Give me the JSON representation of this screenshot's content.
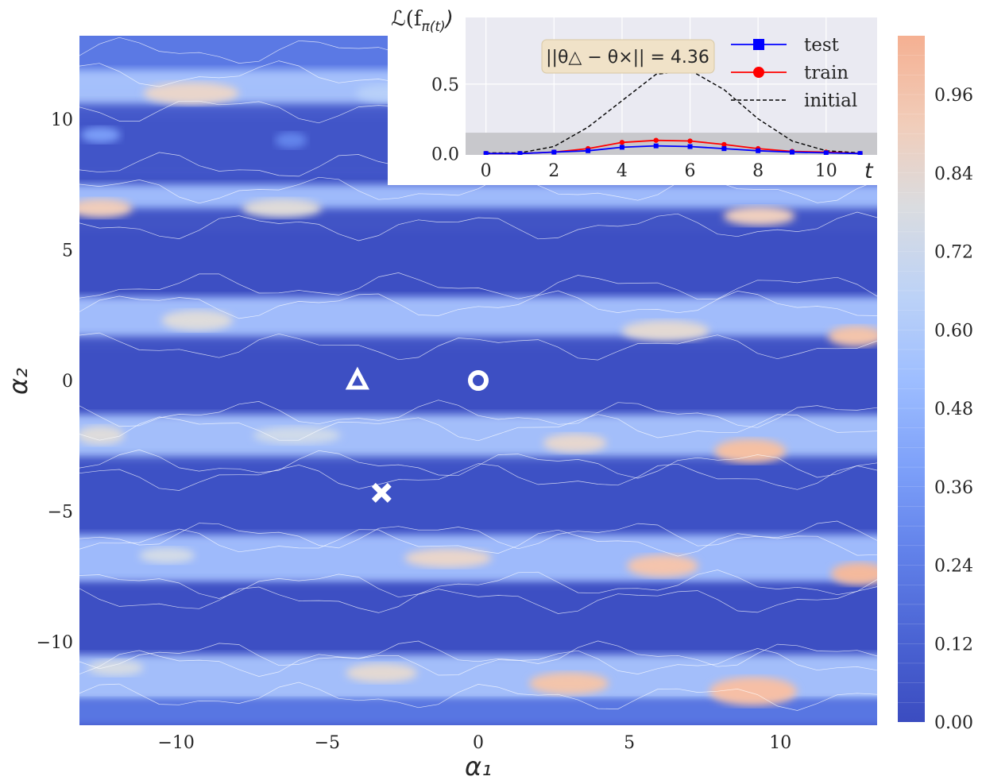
{
  "chart_data": [
    {
      "type": "heatmap",
      "description_of_surface": "contour map of loss over a 2D plane",
      "xlabel": "α₁",
      "ylabel": "α₂",
      "xlim": [
        -13.2,
        13.2
      ],
      "ylim": [
        -13.2,
        13.2
      ],
      "x_ticks": [
        -10,
        -5,
        0,
        5,
        10
      ],
      "x_tick_labels": [
        "−10",
        "−5",
        "0",
        "5",
        "10"
      ],
      "y_ticks": [
        -10,
        -5,
        0,
        5,
        10
      ],
      "y_tick_labels": [
        "−10",
        "−5",
        "0",
        "5",
        "10"
      ],
      "colorbar": {
        "min": 0.0,
        "max": 1.05,
        "ticks": [
          0.0,
          0.12,
          0.24,
          0.36,
          0.48,
          0.6,
          0.72,
          0.84,
          0.96
        ],
        "tick_labels": [
          "0.00",
          "0.12",
          "0.24",
          "0.36",
          "0.48",
          "0.60",
          "0.72",
          "0.84",
          "0.96"
        ],
        "colormap": "coolwarm",
        "low_color": "#3b4cc0",
        "high_color": "#f5b092"
      },
      "markers": [
        {
          "shape": "circle",
          "x": 0.0,
          "y": 0.0
        },
        {
          "shape": "triangle",
          "x": -4.0,
          "y": 0.0
        },
        {
          "shape": "cross",
          "x": -3.2,
          "y": -4.3
        }
      ]
    },
    {
      "type": "line",
      "ylabel": "ℒ(f",
      "ylabel_sub": "π(t)",
      "xlabel": "t",
      "x": [
        0,
        1,
        2,
        3,
        4,
        5,
        6,
        7,
        8,
        9,
        10,
        11
      ],
      "x_ticks": [
        0,
        2,
        4,
        6,
        8,
        10
      ],
      "x_tick_labels": [
        "0",
        "2",
        "4",
        "6",
        "8",
        "10"
      ],
      "y_ticks": [
        0.0,
        0.5
      ],
      "y_tick_labels": [
        "0.0",
        "0.5"
      ],
      "xlim": [
        -0.6,
        11.5
      ],
      "ylim": [
        -0.01,
        0.98
      ],
      "shaded_band": [
        -0.01,
        0.15
      ],
      "annotation": "||θ△ − θ×|| = 4.36",
      "series": [
        {
          "name": "test",
          "color": "#0000ff",
          "marker": "square",
          "values": [
            0.0,
            0.0,
            0.01,
            0.02,
            0.045,
            0.055,
            0.05,
            0.035,
            0.02,
            0.01,
            0.005,
            0.0
          ]
        },
        {
          "name": "train",
          "color": "#ff0000",
          "marker": "circle",
          "values": [
            0.0,
            0.0,
            0.01,
            0.035,
            0.08,
            0.095,
            0.09,
            0.065,
            0.035,
            0.015,
            0.01,
            0.0
          ]
        },
        {
          "name": "initial",
          "color": "#000000",
          "marker": "none",
          "dashed": true,
          "values": [
            0.005,
            0.005,
            0.05,
            0.19,
            0.38,
            0.57,
            0.6,
            0.46,
            0.25,
            0.09,
            0.02,
            0.005
          ]
        }
      ]
    }
  ]
}
